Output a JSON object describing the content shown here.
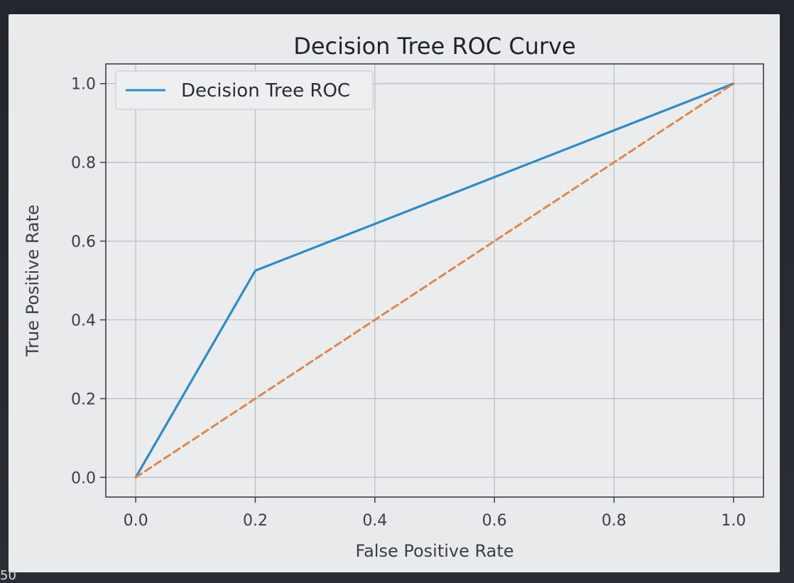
{
  "corner_text": "50",
  "chart_data": {
    "type": "line",
    "title": "Decision Tree ROC Curve",
    "xlabel": "False Positive Rate",
    "ylabel": "True Positive Rate",
    "xlim": [
      -0.05,
      1.05
    ],
    "ylim": [
      -0.05,
      1.05
    ],
    "xticks": [
      0.0,
      0.2,
      0.4,
      0.6,
      0.8,
      1.0
    ],
    "yticks": [
      0.0,
      0.2,
      0.4,
      0.6,
      0.8,
      1.0
    ],
    "xtick_labels": [
      "0.0",
      "0.2",
      "0.4",
      "0.6",
      "0.8",
      "1.0"
    ],
    "ytick_labels": [
      "0.0",
      "0.2",
      "0.4",
      "0.6",
      "0.8",
      "1.0"
    ],
    "grid": true,
    "legend": "upper-left",
    "series": [
      {
        "name": "Decision Tree ROC",
        "style": "solid",
        "color": "#2a8ccf",
        "x": [
          0.0,
          0.2,
          1.0
        ],
        "y": [
          0.0,
          0.525,
          1.0
        ]
      },
      {
        "style": "dashed",
        "color": "#e0864a",
        "x": [
          0.0,
          1.0
        ],
        "y": [
          0.0,
          1.0
        ]
      }
    ]
  }
}
